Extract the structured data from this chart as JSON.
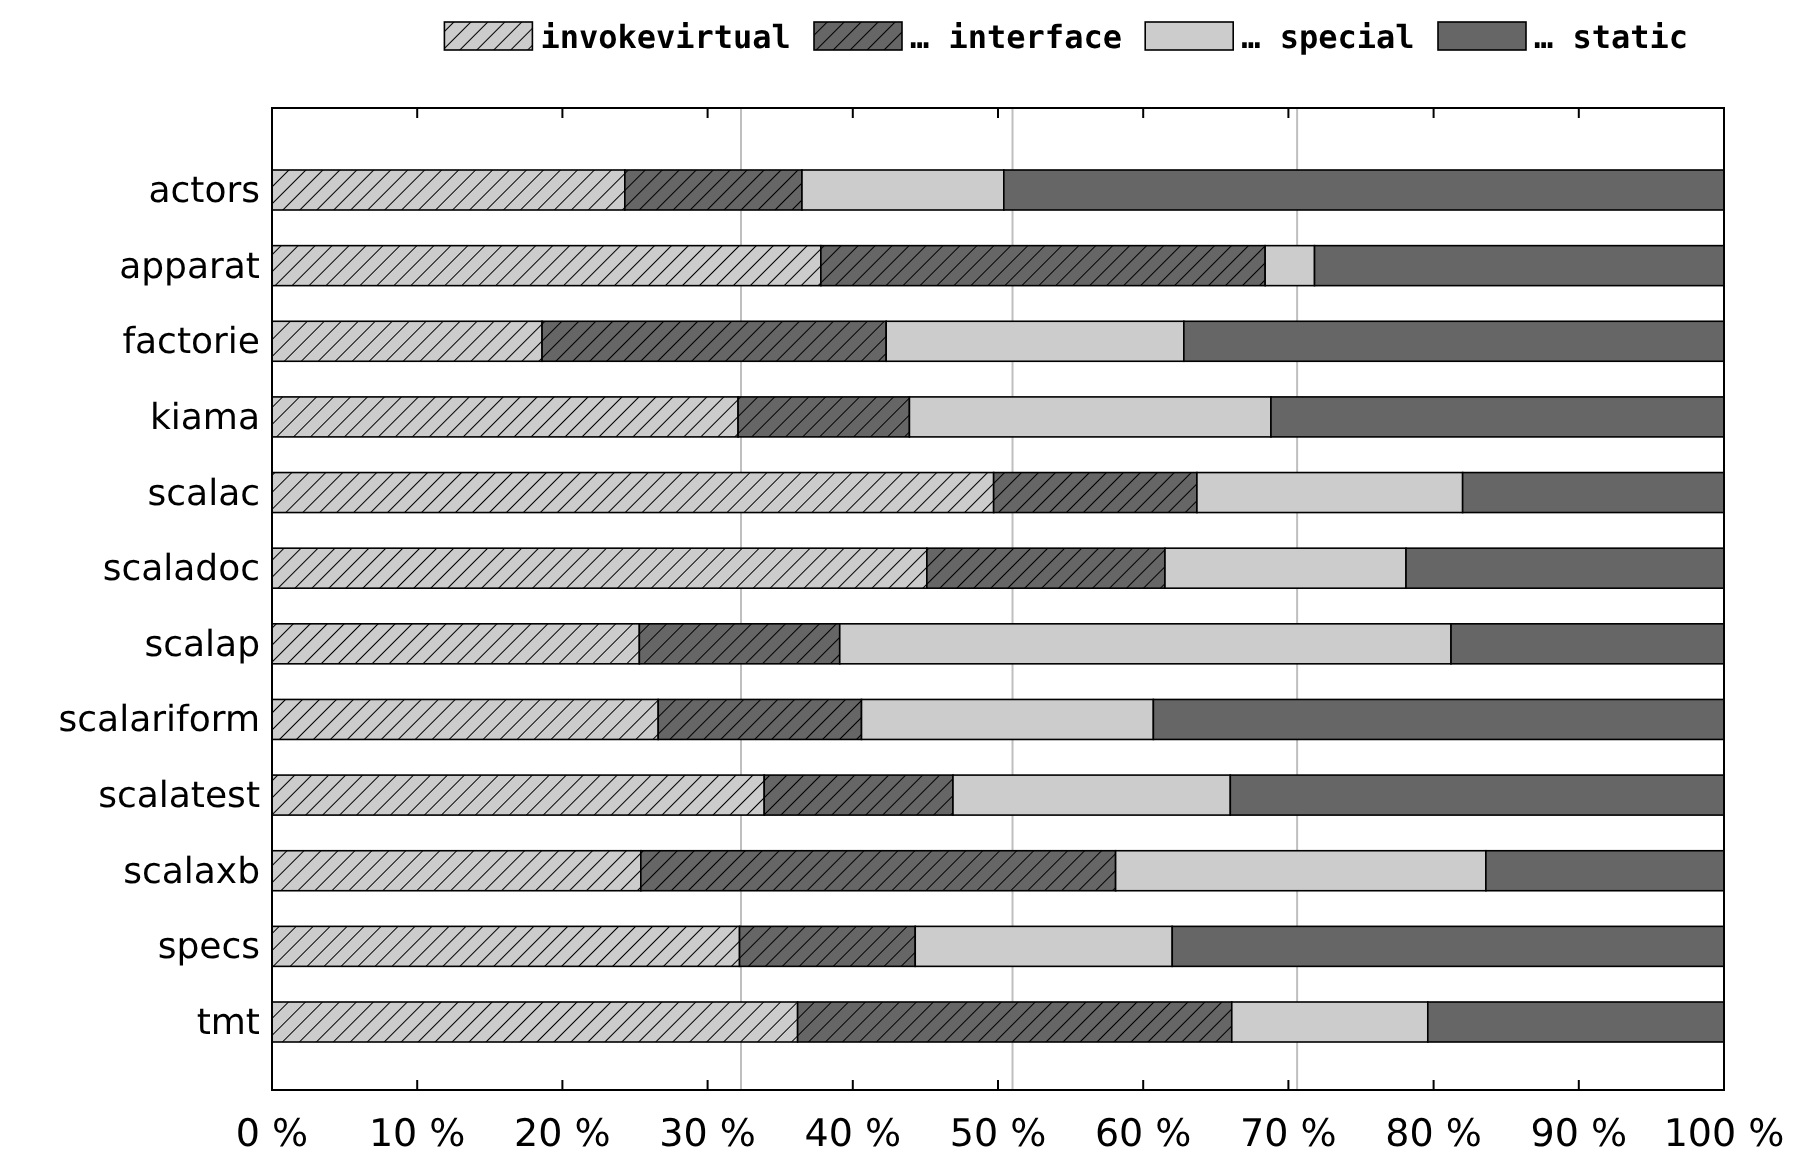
{
  "chart_data": {
    "type": "bar",
    "orientation": "horizontal",
    "stacked": true,
    "categories": [
      "actors",
      "apparat",
      "factorie",
      "kiama",
      "scalac",
      "scaladoc",
      "scalap",
      "scalariform",
      "scalatest",
      "scalaxb",
      "specs",
      "tmt"
    ],
    "series": [
      {
        "name": "invokevirtual",
        "color": "#cccccc",
        "values": [
          24.3,
          37.8,
          18.6,
          32.1,
          49.7,
          45.1,
          25.3,
          26.6,
          33.9,
          25.4,
          32.2,
          36.2
        ]
      },
      {
        "name": "… interface",
        "color": "#666666",
        "values": [
          12.2,
          30.6,
          23.7,
          11.8,
          14.0,
          16.4,
          13.8,
          14.0,
          13.0,
          32.7,
          12.1,
          29.9
        ]
      },
      {
        "name": "… special",
        "color": "#cccccc",
        "values": [
          13.9,
          3.4,
          20.5,
          24.9,
          18.3,
          16.6,
          42.1,
          20.1,
          19.1,
          25.5,
          17.7,
          13.5
        ]
      },
      {
        "name": "… static",
        "color": "#666666",
        "values": [
          49.6,
          28.2,
          37.2,
          31.2,
          18.0,
          21.9,
          18.8,
          39.3,
          34.0,
          16.4,
          38.0,
          20.4
        ]
      }
    ],
    "xlim": [
      0,
      100
    ],
    "xticks": [
      {
        "value": 0,
        "label": "0 %"
      },
      {
        "value": 10,
        "label": "10 %"
      },
      {
        "value": 20,
        "label": "20 %"
      },
      {
        "value": 30,
        "label": "30 %"
      },
      {
        "value": 40,
        "label": "40 %"
      },
      {
        "value": 50,
        "label": "50 %"
      },
      {
        "value": 60,
        "label": "60 %"
      },
      {
        "value": 70,
        "label": "70 %"
      },
      {
        "value": 80,
        "label": "80 %"
      },
      {
        "value": 90,
        "label": "90 %"
      },
      {
        "value": 100,
        "label": "100 %"
      }
    ],
    "ref_lines": [
      {
        "axis": "x",
        "value": 32.3,
        "color": "#bfbfbf"
      },
      {
        "axis": "x",
        "value": 51.0,
        "color": "#bfbfbf"
      },
      {
        "axis": "x",
        "value": 70.6,
        "color": "#bfbfbf"
      }
    ],
    "grid": false,
    "legend": "top"
  }
}
